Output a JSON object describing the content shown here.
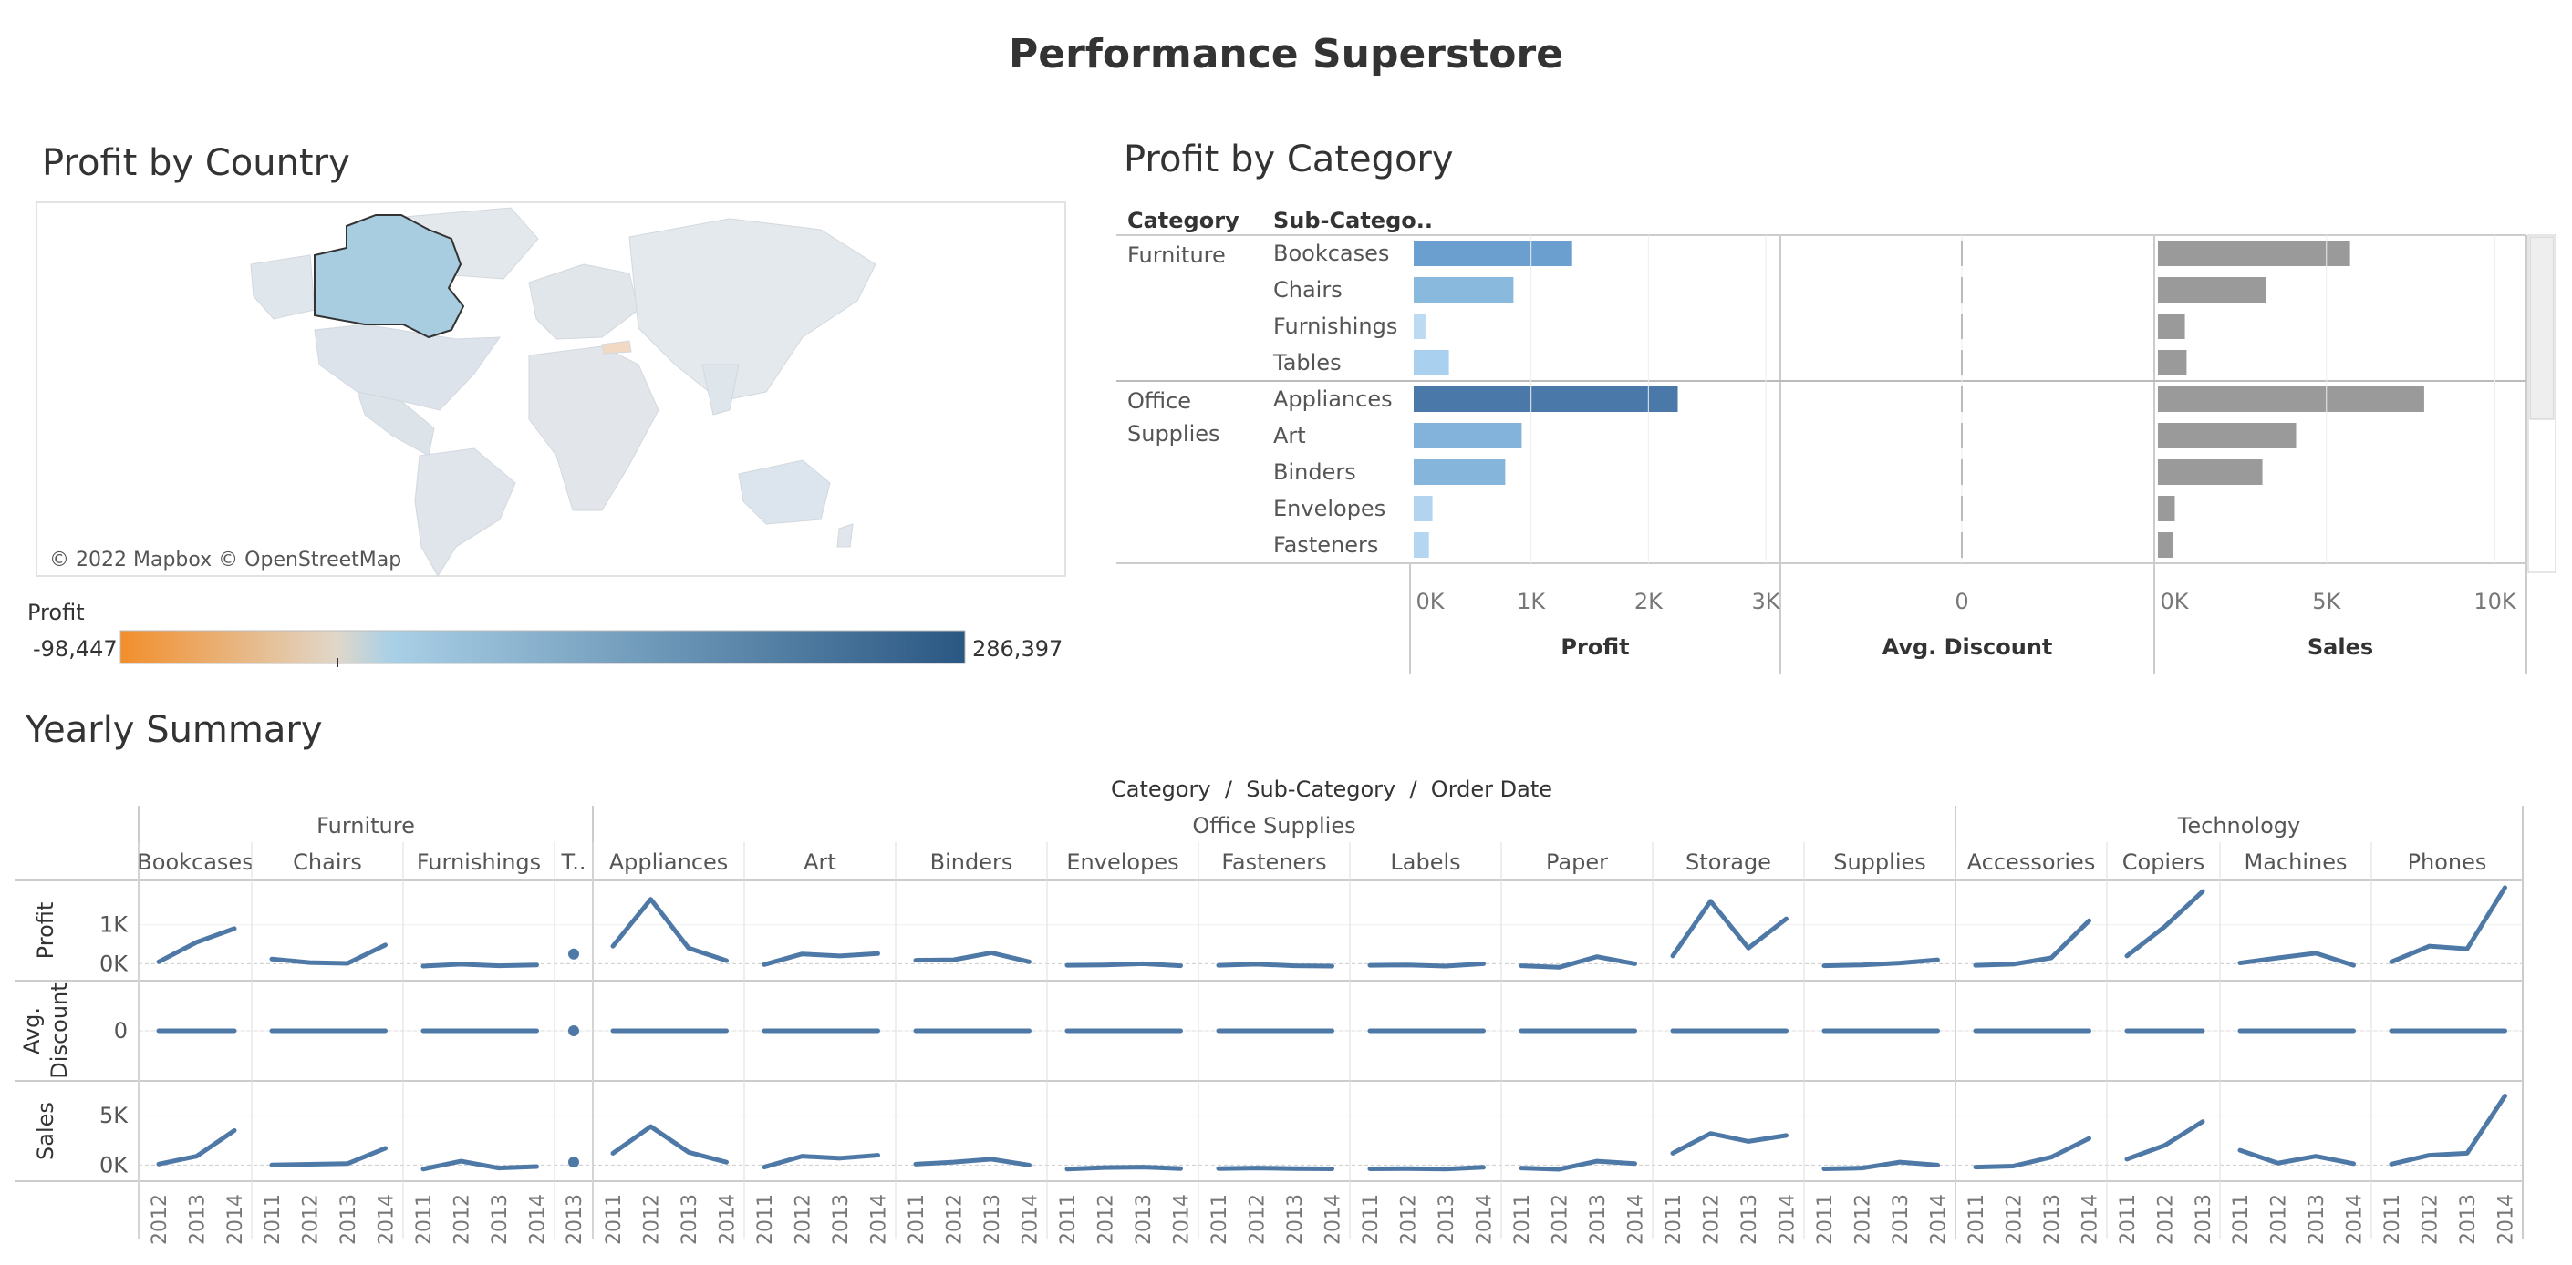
{
  "dashboard": {
    "title": "Performance Superstore"
  },
  "map": {
    "title": "Profit by Country",
    "attribution": "© 2022 Mapbox © OpenStreetMap",
    "legend": {
      "title": "Profit",
      "min_label": "-98,447",
      "max_label": "286,397",
      "min": -98447,
      "max": 286397
    },
    "colors": {
      "negative": "#f28e2b",
      "neutral": "#e0e0e0",
      "light_blue": "#a4cce3",
      "dark_blue": "#2a5783"
    },
    "highlighted_country": "Canada"
  },
  "category_panel": {
    "title": "Profit by Category",
    "col_category": "Category",
    "col_subcategory": "Sub-Catego..",
    "scrollbar": true
  },
  "summary": {
    "title": "Yearly Summary",
    "header": "Category  /  Sub-Category  /  Order Date",
    "row_labels": [
      "Profit",
      "Avg.\nDiscount",
      "Sales"
    ],
    "profit_ticks": [
      "1K",
      "0K"
    ],
    "discount_ticks": [
      "0"
    ],
    "sales_ticks": [
      "5K",
      "0K"
    ]
  },
  "chart_data": [
    {
      "type": "bar",
      "title": "Profit by Category",
      "groups": [
        {
          "category": "Furniture",
          "subcategories": [
            "Bookcases",
            "Chairs",
            "Furnishings",
            "Tables"
          ]
        },
        {
          "category": "Office Supplies",
          "subcategories": [
            "Appliances",
            "Art",
            "Binders",
            "Envelopes",
            "Fasteners"
          ]
        }
      ],
      "series": [
        {
          "name": "Profit",
          "xlim": [
            0,
            3000
          ],
          "ticks": [
            {
              "v": 0,
              "label": "0K"
            },
            {
              "v": 1000,
              "label": "1K"
            },
            {
              "v": 2000,
              "label": "2K"
            },
            {
              "v": 3000,
              "label": "3K"
            }
          ],
          "values": [
            1350,
            850,
            100,
            300,
            2250,
            920,
            780,
            160,
            130
          ],
          "colors": [
            "#6b9fcf",
            "#8ab9de",
            "#bcdaf2",
            "#a9d0ef",
            "#4a78a8",
            "#83b2db",
            "#86b5dc",
            "#b2d4ef",
            "#b5d6f0"
          ]
        },
        {
          "name": "Avg. Discount",
          "xlim": [
            -1,
            1
          ],
          "ticks": [
            {
              "v": 0,
              "label": "0"
            }
          ],
          "values": [
            0,
            0,
            0,
            0,
            0,
            0,
            0,
            0,
            0
          ]
        },
        {
          "name": "Sales",
          "xlim": [
            0,
            10500
          ],
          "ticks": [
            {
              "v": 0,
              "label": "0K"
            },
            {
              "v": 5000,
              "label": "5K"
            },
            {
              "v": 10000,
              "label": "10K"
            }
          ],
          "values": [
            5700,
            3200,
            800,
            850,
            7900,
            4100,
            3100,
            500,
            450
          ],
          "color": "#9a9a9a"
        }
      ]
    },
    {
      "type": "line",
      "title": "Yearly Summary",
      "color": "#4e79a7",
      "categories": [
        {
          "name": "Furniture",
          "subcategories": [
            {
              "name": "Bookcases",
              "years": [
                "2012",
                "2013",
                "2014"
              ],
              "profit": [
                50,
                550,
                900
              ],
              "discount": [
                0,
                0,
                0
              ],
              "sales": [
                100,
                900,
                3500
              ]
            },
            {
              "name": "Chairs",
              "years": [
                "2011",
                "2012",
                "2013",
                "2014"
              ],
              "profit": [
                120,
                30,
                10,
                480
              ],
              "discount": [
                0,
                0,
                0,
                0
              ],
              "sales": [
                20,
                80,
                150,
                1700
              ]
            },
            {
              "name": "Furnishings",
              "years": [
                "2011",
                "2012",
                "2013",
                "2014"
              ],
              "profit": [
                -60,
                -10,
                -50,
                -30
              ],
              "discount": [
                0,
                0,
                0,
                0
              ],
              "sales": [
                -400,
                400,
                -300,
                -150
              ]
            },
            {
              "name": "T..",
              "years": [
                "2013"
              ],
              "profit": [
                250
              ],
              "discount": [
                0
              ],
              "sales": [
                300
              ]
            }
          ]
        },
        {
          "name": "Office Supplies",
          "subcategories": [
            {
              "name": "Appliances",
              "years": [
                "2011",
                "2012",
                "2013",
                "2014"
              ],
              "profit": [
                450,
                1650,
                400,
                80
              ],
              "discount": [
                0,
                0,
                0,
                0
              ],
              "sales": [
                1200,
                3900,
                1300,
                300
              ]
            },
            {
              "name": "Art",
              "years": [
                "2011",
                "2012",
                "2013",
                "2014"
              ],
              "profit": [
                -20,
                250,
                200,
                260
              ],
              "discount": [
                0,
                0,
                0,
                0
              ],
              "sales": [
                -200,
                900,
                700,
                1000
              ]
            },
            {
              "name": "Binders",
              "years": [
                "2011",
                "2012",
                "2013",
                "2014"
              ],
              "profit": [
                90,
                100,
                280,
                50
              ],
              "discount": [
                0,
                0,
                0,
                0
              ],
              "sales": [
                100,
                300,
                600,
                0
              ]
            },
            {
              "name": "Envelopes",
              "years": [
                "2011",
                "2012",
                "2013",
                "2014"
              ],
              "profit": [
                -40,
                -30,
                0,
                -50
              ],
              "discount": [
                0,
                0,
                0,
                0
              ],
              "sales": [
                -400,
                -250,
                -200,
                -350
              ]
            },
            {
              "name": "Fasteners",
              "years": [
                "2011",
                "2012",
                "2013",
                "2014"
              ],
              "profit": [
                -40,
                -10,
                -50,
                -60
              ],
              "discount": [
                0,
                0,
                0,
                0
              ],
              "sales": [
                -350,
                -300,
                -350,
                -380
              ]
            },
            {
              "name": "Labels",
              "years": [
                "2011",
                "2012",
                "2013",
                "2014"
              ],
              "profit": [
                -40,
                -30,
                -60,
                0
              ],
              "discount": [
                0,
                0,
                0,
                0
              ],
              "sales": [
                -380,
                -350,
                -400,
                -220
              ]
            },
            {
              "name": "Paper",
              "years": [
                "2011",
                "2012",
                "2013",
                "2014"
              ],
              "profit": [
                -50,
                -90,
                180,
                0
              ],
              "discount": [
                0,
                0,
                0,
                0
              ],
              "sales": [
                -300,
                -420,
                400,
                150
              ]
            },
            {
              "name": "Storage",
              "years": [
                "2011",
                "2012",
                "2013",
                "2014"
              ],
              "profit": [
                200,
                1600,
                400,
                1150
              ],
              "discount": [
                0,
                0,
                0,
                0
              ],
              "sales": [
                1200,
                3200,
                2400,
                3000
              ]
            },
            {
              "name": "Supplies",
              "years": [
                "2011",
                "2012",
                "2013",
                "2014"
              ],
              "profit": [
                -50,
                -30,
                20,
                100
              ],
              "discount": [
                0,
                0,
                0,
                0
              ],
              "sales": [
                -380,
                -300,
                300,
                0
              ]
            }
          ]
        },
        {
          "name": "Technology",
          "subcategories": [
            {
              "name": "Accessories",
              "years": [
                "2011",
                "2012",
                "2013",
                "2014"
              ],
              "profit": [
                -40,
                -10,
                150,
                1100
              ],
              "discount": [
                0,
                0,
                0,
                0
              ],
              "sales": [
                -200,
                -100,
                800,
                2700
              ]
            },
            {
              "name": "Copiers",
              "years": [
                "2011",
                "2012",
                "2013"
              ],
              "profit": [
                200,
                950,
                1850
              ],
              "discount": [
                0,
                0,
                0
              ],
              "sales": [
                600,
                2000,
                4400
              ]
            },
            {
              "name": "Machines",
              "years": [
                "2011",
                "2012",
                "2013",
                "2014"
              ],
              "profit": [
                20,
                150,
                270,
                -40
              ],
              "discount": [
                0,
                0,
                0,
                0
              ],
              "sales": [
                1500,
                200,
                900,
                150
              ]
            },
            {
              "name": "Phones",
              "years": [
                "2011",
                "2012",
                "2013",
                "2014"
              ],
              "profit": [
                50,
                450,
                380,
                1950
              ],
              "discount": [
                0,
                0,
                0,
                0
              ],
              "sales": [
                100,
                1000,
                1200,
                7000
              ]
            }
          ]
        }
      ]
    }
  ]
}
